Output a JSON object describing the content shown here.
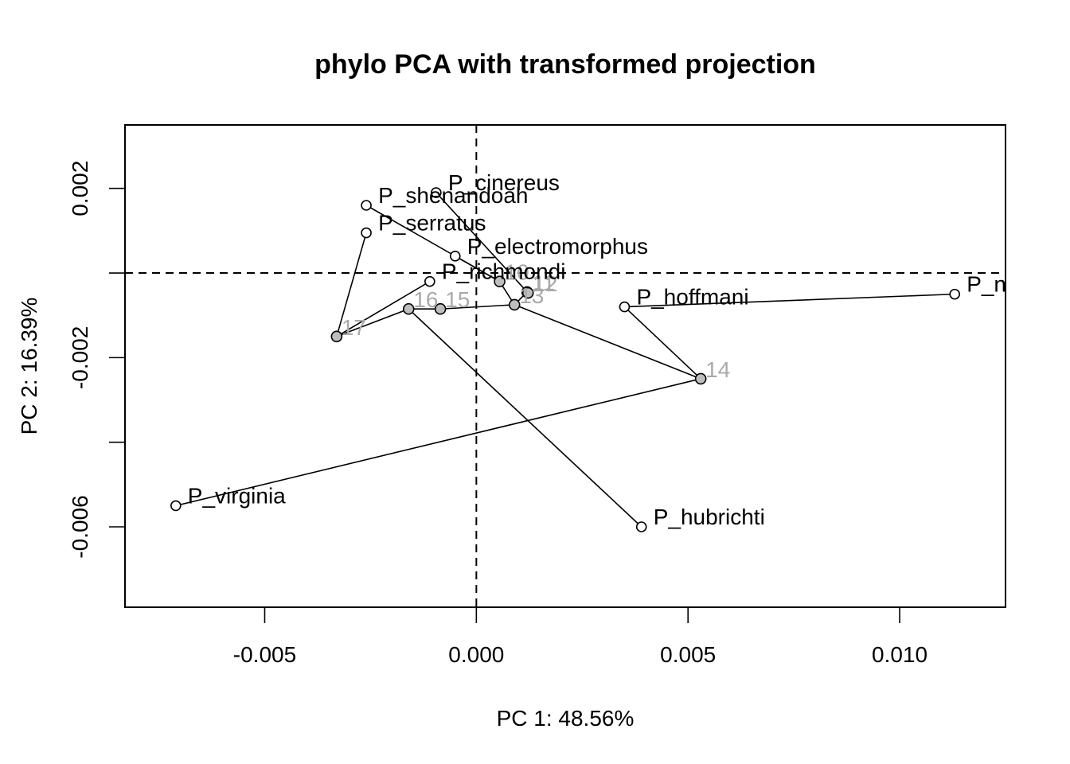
{
  "chart_data": {
    "type": "scatter",
    "title": "phylo PCA with transformed projection",
    "xlabel": "PC 1: 48.56%",
    "ylabel": "PC 2: 16.39%",
    "xlim": [
      -0.0083,
      0.0125
    ],
    "ylim": [
      -0.0079,
      0.0035
    ],
    "x_ticks": [
      {
        "value": -0.005,
        "label": "-0.005"
      },
      {
        "value": 0.0,
        "label": "0.000"
      },
      {
        "value": 0.005,
        "label": "0.005"
      },
      {
        "value": 0.01,
        "label": "0.010"
      }
    ],
    "y_ticks": [
      {
        "value": 0.002,
        "label": "0.002"
      },
      {
        "value": 0.0,
        "label": ""
      },
      {
        "value": -0.002,
        "label": "-0.002"
      },
      {
        "value": -0.004,
        "label": ""
      },
      {
        "value": -0.006,
        "label": "-0.006"
      }
    ],
    "reference_lines": {
      "x": 0,
      "y": 0,
      "style": "dashed"
    },
    "tips": [
      {
        "id": "cinereus",
        "label": "P_cinereus",
        "x": -0.00095,
        "y": 0.0019
      },
      {
        "id": "shenandoah",
        "label": "P_shenandoah",
        "x": -0.0026,
        "y": 0.0016
      },
      {
        "id": "serratus",
        "label": "P_serratus",
        "x": -0.0026,
        "y": 0.00095
      },
      {
        "id": "electromorphus",
        "label": "P_electromorphus",
        "x": -0.0005,
        "y": 0.0004
      },
      {
        "id": "richmondi",
        "label": "P_richmondi",
        "x": -0.0011,
        "y": -0.0002
      },
      {
        "id": "hoffmani",
        "label": "P_hoffmani",
        "x": 0.0035,
        "y": -0.0008
      },
      {
        "id": "n",
        "label": "P_n",
        "x": 0.0113,
        "y": -0.0005
      },
      {
        "id": "virginia",
        "label": "P_virginia",
        "x": -0.0071,
        "y": -0.0055
      },
      {
        "id": "hubrichti",
        "label": "P_hubrichti",
        "x": 0.0039,
        "y": -0.006
      }
    ],
    "nodes": [
      {
        "id": "10",
        "label": "10",
        "x": 0.00055,
        "y": -0.0002
      },
      {
        "id": "11",
        "label": "11",
        "x": 0.0012,
        "y": -0.00045
      },
      {
        "id": "12",
        "label": "12",
        "x": 0.00122,
        "y": -0.00047
      },
      {
        "id": "13",
        "label": "13",
        "x": 0.0009,
        "y": -0.00075
      },
      {
        "id": "14",
        "label": "14",
        "x": 0.0053,
        "y": -0.0025
      },
      {
        "id": "15",
        "label": "15",
        "x": -0.00085,
        "y": -0.00085
      },
      {
        "id": "16",
        "label": "16",
        "x": -0.0016,
        "y": -0.00085
      },
      {
        "id": "17",
        "label": "17",
        "x": -0.0033,
        "y": -0.0015
      }
    ],
    "edges": [
      [
        "17",
        "serratus"
      ],
      [
        "17",
        "richmondi"
      ],
      [
        "17",
        "16"
      ],
      [
        "16",
        "hubrichti"
      ],
      [
        "16",
        "15"
      ],
      [
        "15",
        "13"
      ],
      [
        "13",
        "10"
      ],
      [
        "10",
        "electromorphus"
      ],
      [
        "10",
        "shenandoah"
      ],
      [
        "13",
        "11"
      ],
      [
        "11",
        "12"
      ],
      [
        "12",
        "cinereus"
      ],
      [
        "13",
        "14"
      ],
      [
        "14",
        "hoffmani"
      ],
      [
        "14",
        "virginia"
      ],
      [
        "hoffmani",
        "n"
      ]
    ],
    "colors": {
      "tip_fill": "#ffffff",
      "node_fill": "#bebebe",
      "node_label": "#aaaaaa",
      "line": "#000000"
    }
  }
}
